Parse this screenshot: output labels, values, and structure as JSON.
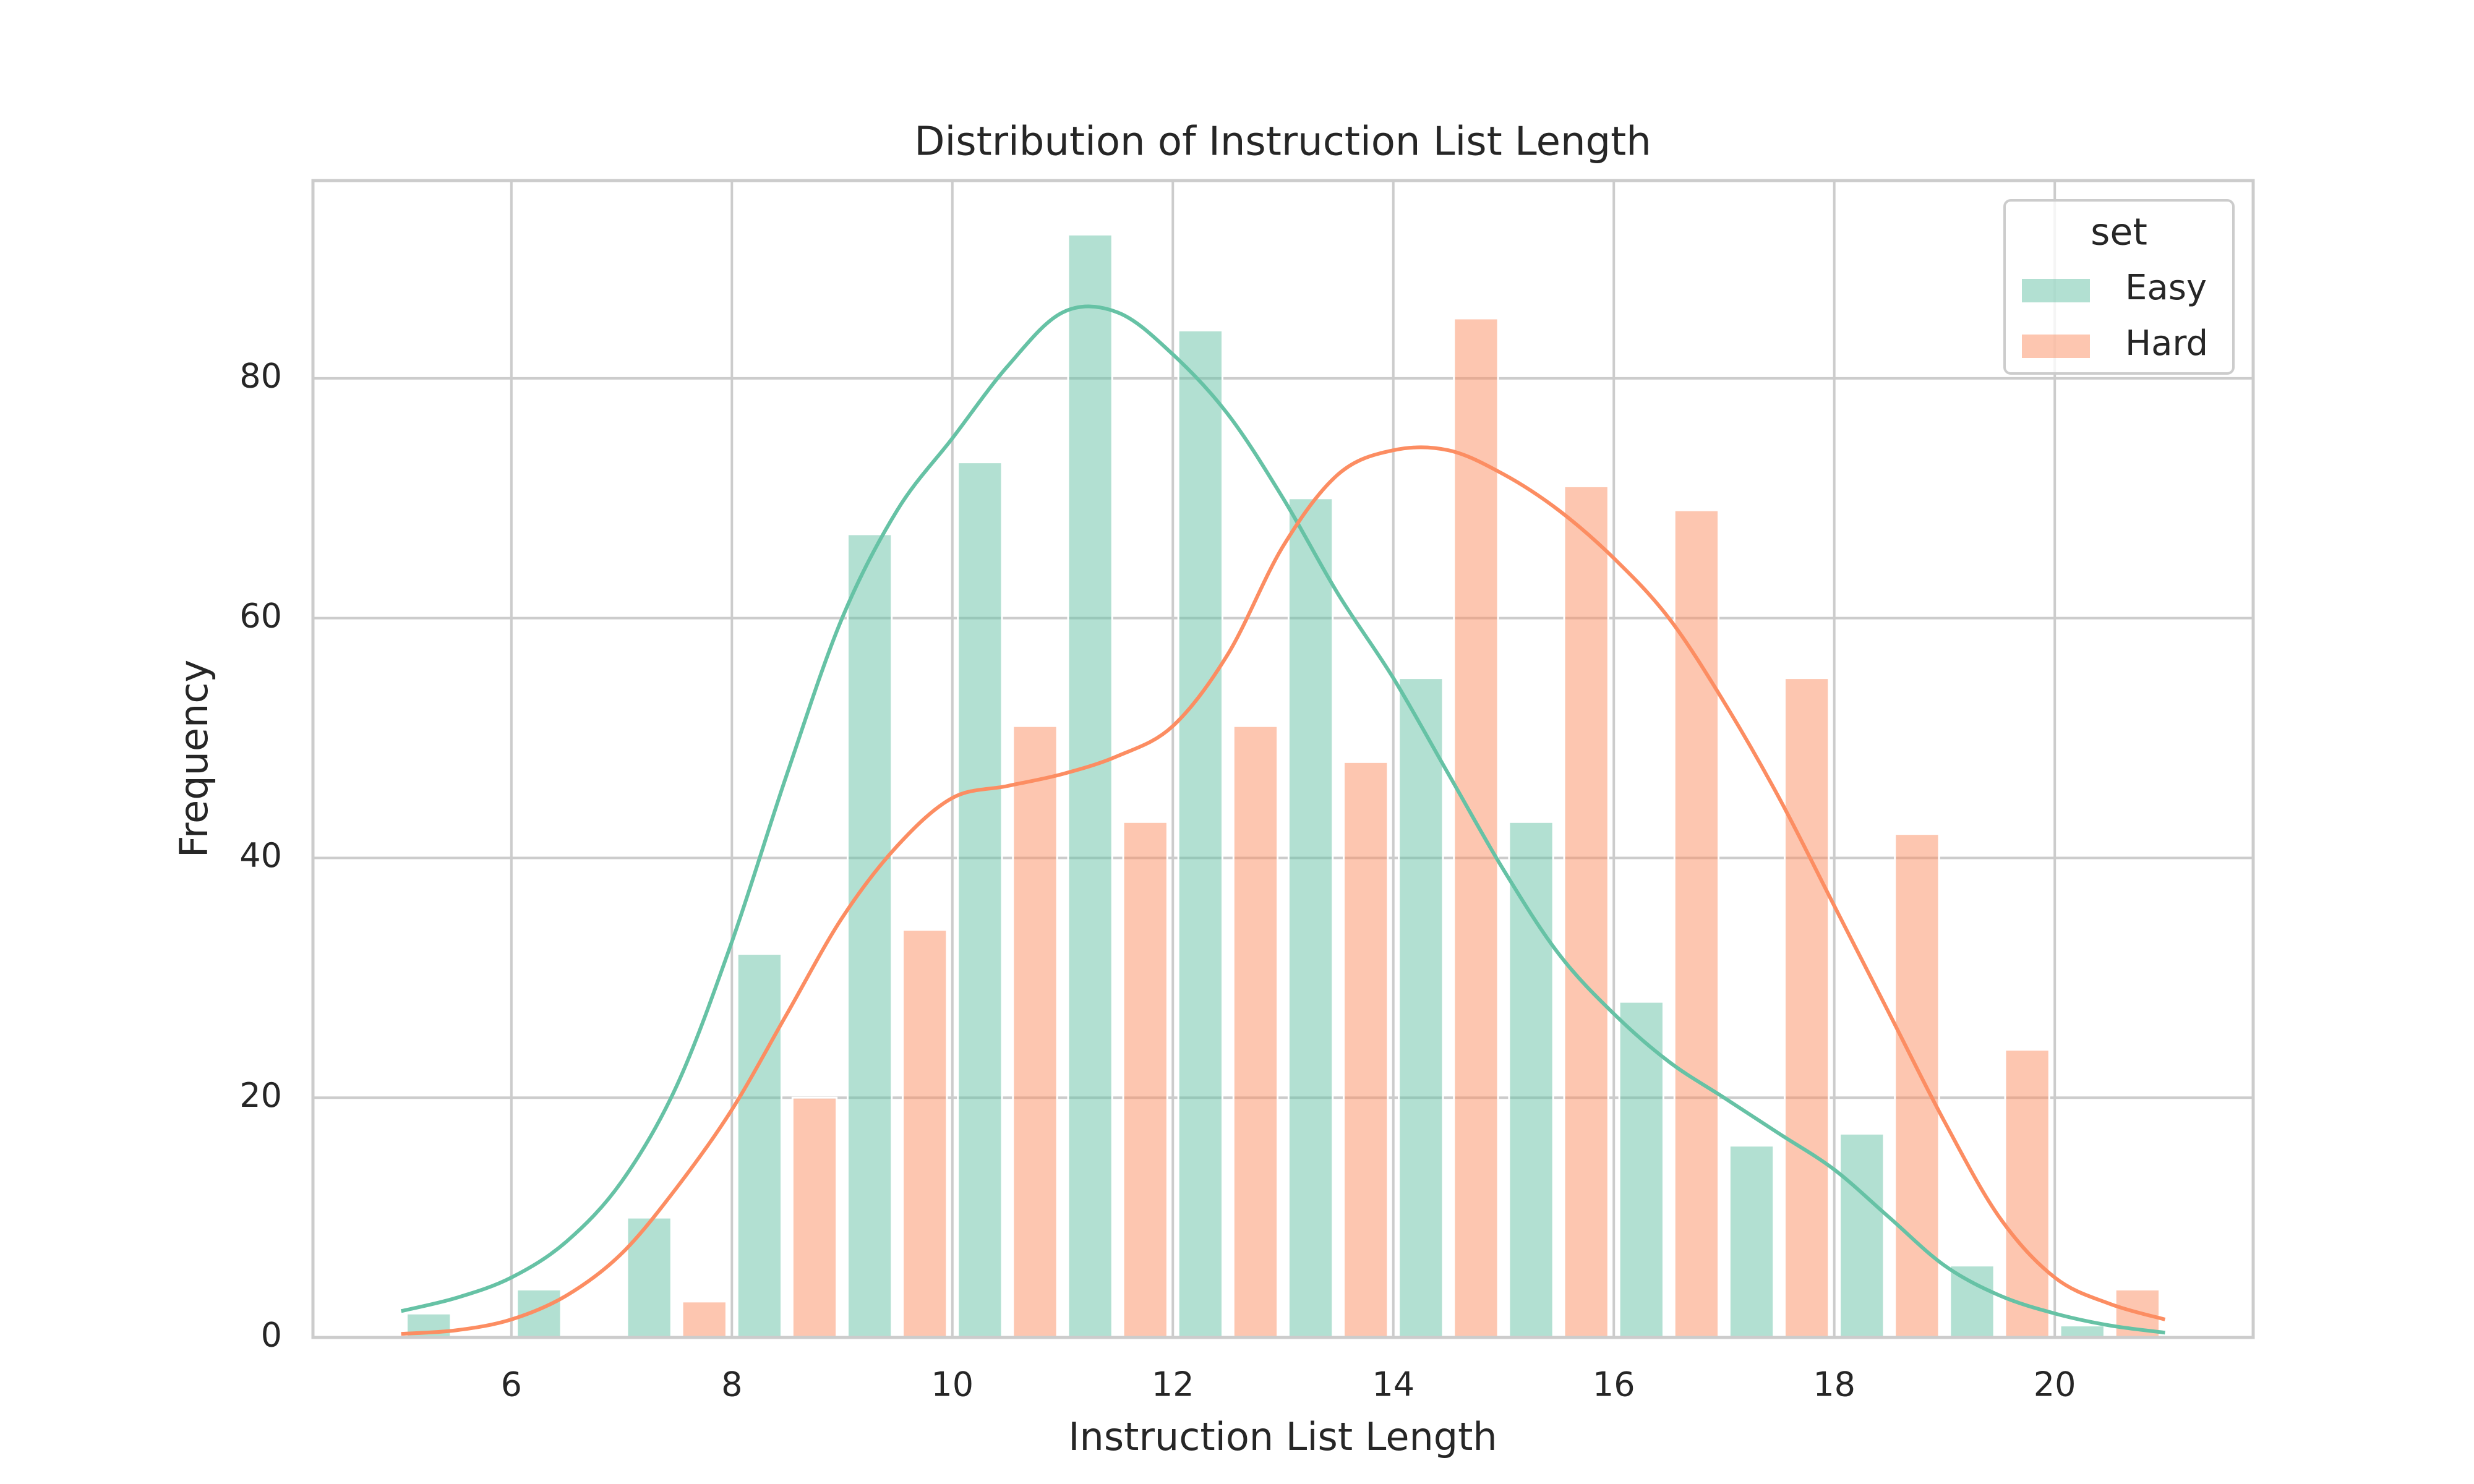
{
  "chart_data": {
    "type": "histogram",
    "title": "Distribution of Instruction List Length",
    "x_label": "Instruction List Length",
    "y_label": "Frequency",
    "bins": [
      5,
      6,
      7,
      8,
      9,
      10,
      11,
      12,
      13,
      14,
      15,
      16,
      17,
      18,
      19,
      20,
      21
    ],
    "multiple": "dodge",
    "bar_alpha": 0.5,
    "series": [
      {
        "name": "Easy",
        "color": "#66c2a5",
        "values": [
          2,
          4,
          10,
          32,
          67,
          73,
          92,
          84,
          70,
          55,
          43,
          28,
          16,
          17,
          6,
          1
        ],
        "kde": [
          2.2,
          3.3,
          5,
          8,
          13,
          21,
          33,
          47,
          60,
          69,
          75,
          81,
          85.5,
          85.5,
          82,
          77,
          70,
          62,
          55,
          47,
          39,
          32,
          27,
          23,
          20,
          17,
          14,
          10,
          6,
          3.5,
          2,
          1,
          0.4
        ]
      },
      {
        "name": "Hard",
        "color": "#fc8d62",
        "values": [
          0,
          0,
          3,
          20,
          34,
          51,
          43,
          51,
          48,
          85,
          71,
          69,
          55,
          42,
          24,
          4
        ],
        "kde": [
          0.3,
          0.6,
          1.5,
          3.5,
          7,
          12.5,
          19,
          27,
          35,
          41,
          45,
          46,
          47,
          48.5,
          51,
          57,
          66,
          72,
          74,
          74,
          72,
          69,
          65,
          60,
          53,
          45,
          36,
          27,
          18,
          10,
          5,
          2.8,
          1.5
        ]
      }
    ],
    "kde_x": [
      5,
      5.5,
      6,
      6.5,
      7,
      7.5,
      8,
      8.5,
      9,
      9.5,
      10,
      10.5,
      11,
      11.5,
      12,
      12.5,
      13,
      13.5,
      14,
      14.5,
      15,
      15.5,
      16,
      16.5,
      17,
      17.5,
      18,
      18.5,
      19,
      19.5,
      20,
      20.5,
      21
    ],
    "xlim": [
      4.2,
      21.8
    ],
    "ylim": [
      0,
      96.5
    ],
    "xticks": [
      6,
      8,
      10,
      12,
      14,
      16,
      18,
      20
    ],
    "yticks": [
      0,
      20,
      40,
      60,
      80
    ],
    "grid": true,
    "legend_title": "set",
    "legend_position": "upper right"
  }
}
